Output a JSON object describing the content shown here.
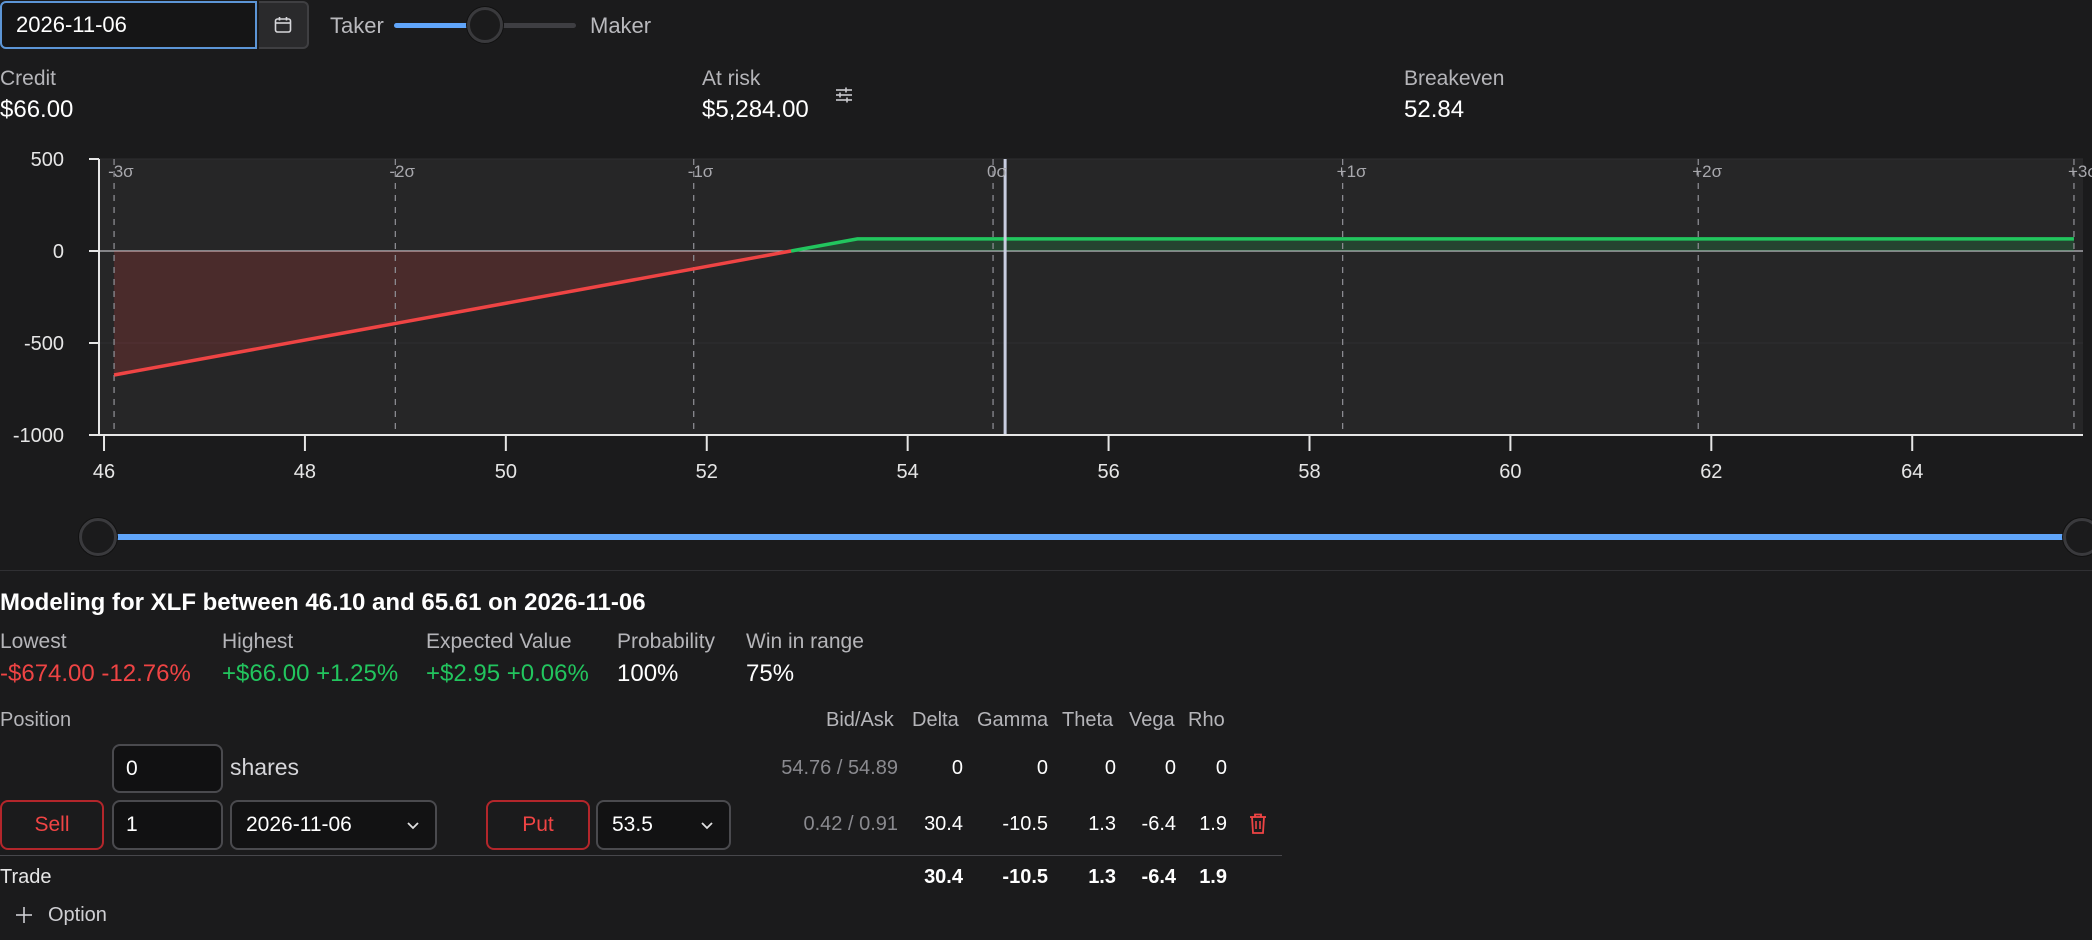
{
  "toolbar": {
    "date_value": "2026-11-06",
    "taker_label": "Taker",
    "maker_label": "Maker",
    "slider_position": 0.5
  },
  "stats": {
    "credit_label": "Credit",
    "credit_value": "$66.00",
    "at_risk_label": "At risk",
    "at_risk_value": "$5,284.00",
    "breakeven_label": "Breakeven",
    "breakeven_value": "52.84"
  },
  "chart_data": {
    "type": "area",
    "xlim": [
      45.95,
      65.7
    ],
    "ylim": [
      -1000,
      500
    ],
    "y_ticks": [
      "500",
      "0",
      "-500",
      "-1000"
    ],
    "x_ticks": [
      "46",
      "48",
      "50",
      "52",
      "54",
      "56",
      "58",
      "60",
      "62",
      "64"
    ],
    "sigma_lines": [
      {
        "label": "-3σ",
        "x": 46.1
      },
      {
        "label": "-2σ",
        "x": 48.9
      },
      {
        "label": "-1σ",
        "x": 51.87
      },
      {
        "label": "0σ",
        "x": 54.85
      },
      {
        "label": "+1σ",
        "x": 58.33
      },
      {
        "label": "+2σ",
        "x": 61.87
      },
      {
        "label": "+3σ",
        "x": 65.61
      }
    ],
    "current_price": 54.97,
    "payoff": {
      "x": [
        46.1,
        52.84,
        53.5,
        65.61
      ],
      "y": [
        -674,
        0,
        66,
        66
      ]
    },
    "colors": {
      "profit": "#22c55e",
      "loss": "#ef4444",
      "price_line": "#c8cde0"
    }
  },
  "range_slider": {
    "min": 46.1,
    "max": 65.61,
    "color": "#60a5fa"
  },
  "modeling": {
    "heading": "Modeling for XLF between 46.10 and 65.61 on 2026-11-06",
    "lowest_label": "Lowest",
    "lowest_value": "-$674.00 -12.76%",
    "highest_label": "Highest",
    "highest_value": "+$66.00 +1.25%",
    "ev_label": "Expected Value",
    "ev_value": "+$2.95 +0.06%",
    "prob_label": "Probability",
    "prob_value": "100%",
    "win_label": "Win in range",
    "win_value": "75%"
  },
  "positions": {
    "header": {
      "position": "Position",
      "bidask": "Bid/Ask",
      "delta": "Delta",
      "gamma": "Gamma",
      "theta": "Theta",
      "vega": "Vega",
      "rho": "Rho"
    },
    "shares_row": {
      "qty": "0",
      "unit": "shares",
      "bidask": "54.76 / 54.89",
      "delta": "0",
      "gamma": "0",
      "theta": "0",
      "vega": "0",
      "rho": "0"
    },
    "option_row": {
      "side": "Sell",
      "qty": "1",
      "expiry": "2026-11-06",
      "type": "Put",
      "strike": "53.5",
      "bidask": "0.42 / 0.91",
      "delta": "30.4",
      "gamma": "-10.5",
      "theta": "1.3",
      "vega": "-6.4",
      "rho": "1.9"
    },
    "trade_row": {
      "label": "Trade",
      "delta": "30.4",
      "gamma": "-10.5",
      "theta": "1.3",
      "vega": "-6.4",
      "rho": "1.9"
    },
    "add_option_label": "Option"
  }
}
